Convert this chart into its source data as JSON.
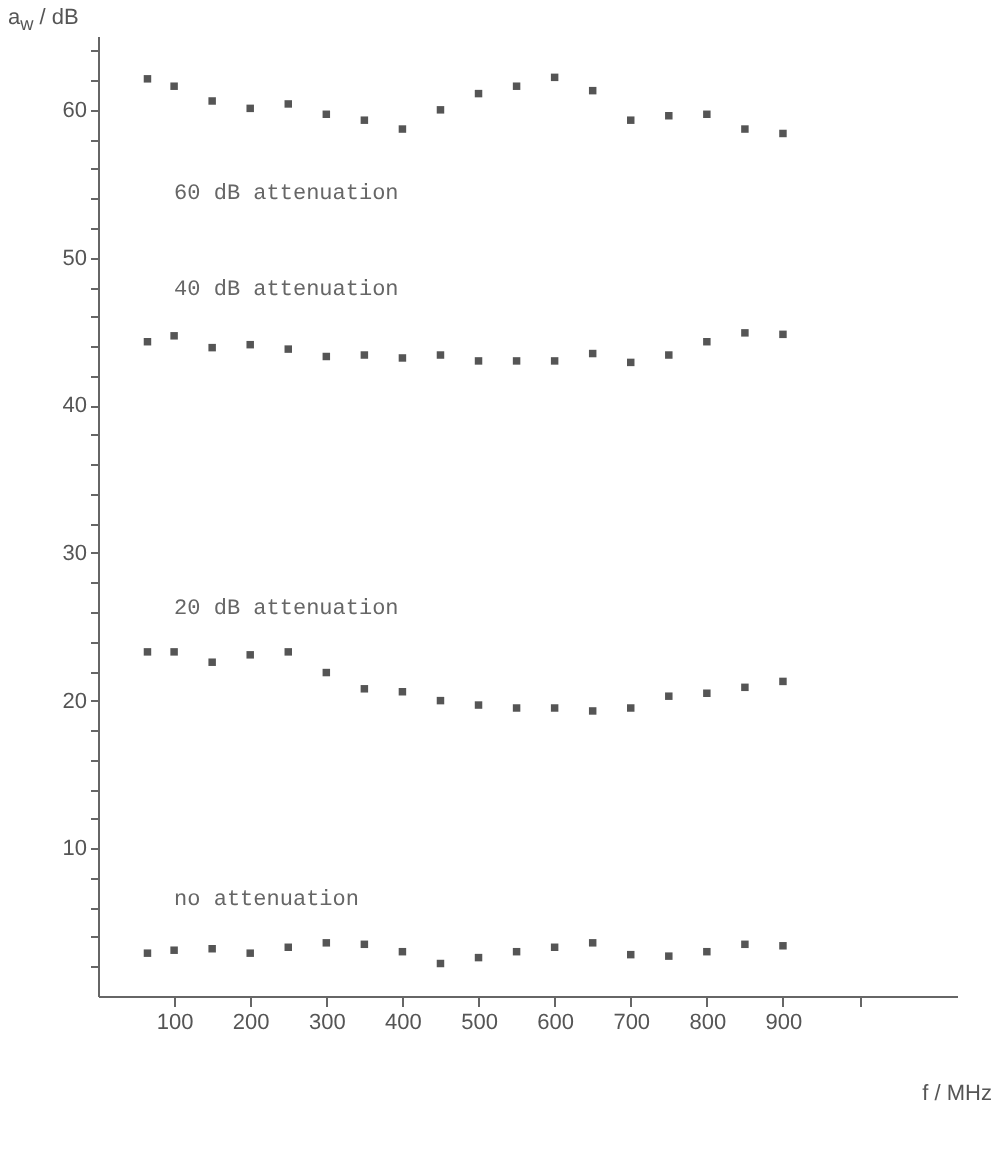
{
  "chart_data": {
    "type": "scatter",
    "xlabel": "f / MHz",
    "ylabel": "a$_{w}$ / dB",
    "x": [
      65,
      100,
      150,
      200,
      250,
      300,
      350,
      400,
      450,
      500,
      550,
      600,
      650,
      700,
      750,
      800,
      850,
      900
    ],
    "series": [
      {
        "name": "60 dB attenuation",
        "color": "#555555",
        "values": [
          62.1,
          61.6,
          60.6,
          60.1,
          60.4,
          59.7,
          59.3,
          58.7,
          60.0,
          61.1,
          61.6,
          62.2,
          61.3,
          59.3,
          59.6,
          59.7,
          58.7,
          58.4
        ]
      },
      {
        "name": "40 dB attenuation",
        "color": "#555555",
        "values": [
          44.3,
          44.7,
          43.9,
          44.1,
          43.8,
          43.3,
          43.4,
          43.2,
          43.4,
          43.0,
          43.0,
          43.0,
          43.5,
          42.9,
          43.4,
          44.3,
          44.9,
          44.8
        ]
      },
      {
        "name": "20 dB attenuation",
        "color": "#555555",
        "values": [
          23.3,
          23.3,
          22.6,
          23.1,
          23.3,
          21.9,
          20.8,
          20.6,
          20.0,
          19.7,
          19.5,
          19.5,
          19.3,
          19.5,
          20.3,
          20.5,
          20.9,
          21.3
        ]
      },
      {
        "name": "no attenuation",
        "color": "#555555",
        "values": [
          2.9,
          3.1,
          3.2,
          2.9,
          3.3,
          3.6,
          3.5,
          3.0,
          2.2,
          2.6,
          3.0,
          3.3,
          3.6,
          2.8,
          2.7,
          3.0,
          3.5,
          3.4
        ]
      }
    ],
    "xlim": [
      0,
      1130
    ],
    "ylim": [
      0,
      65
    ],
    "xticks": [
      100,
      200,
      300,
      400,
      500,
      600,
      700,
      800,
      900,
      {
        "value": 1000,
        "label": null
      }
    ],
    "yticks": [
      {
        "value": 2,
        "label": null
      },
      {
        "value": 4,
        "label": null
      },
      {
        "value": 6,
        "label": null
      },
      {
        "value": 8,
        "label": null
      },
      10,
      {
        "value": 12,
        "label": null
      },
      {
        "value": 14,
        "label": null
      },
      {
        "value": 16,
        "label": null
      },
      {
        "value": 18,
        "label": null
      },
      20,
      {
        "value": 22,
        "label": null
      },
      {
        "value": 24,
        "label": null
      },
      {
        "value": 26,
        "label": null
      },
      {
        "value": 28,
        "label": null
      },
      30,
      {
        "value": 32,
        "label": null
      },
      {
        "value": 34,
        "label": null
      },
      {
        "value": 36,
        "label": null
      },
      {
        "value": 38,
        "label": null
      },
      40,
      {
        "value": 42,
        "label": null
      },
      {
        "value": 44,
        "label": null
      },
      {
        "value": 46,
        "label": null
      },
      {
        "value": 48,
        "label": null
      },
      50,
      {
        "value": 52,
        "label": null
      },
      {
        "value": 54,
        "label": null
      },
      {
        "value": 56,
        "label": null
      },
      {
        "value": 58,
        "label": null
      },
      60,
      {
        "value": 62,
        "label": null
      },
      {
        "value": 64,
        "label": null
      }
    ],
    "grid": false,
    "legend": false,
    "marker": "square"
  }
}
